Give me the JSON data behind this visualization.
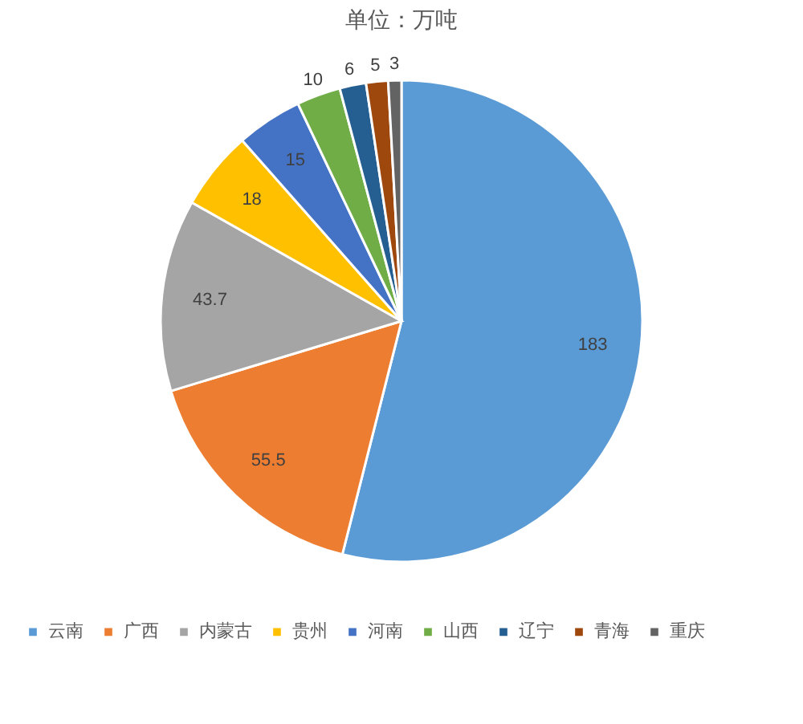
{
  "chart_data": {
    "type": "pie",
    "title": "单位：万吨",
    "categories": [
      "云南",
      "广西",
      "内蒙古",
      "贵州",
      "河南",
      "山西",
      "辽宁",
      "青海",
      "重庆"
    ],
    "values": [
      183,
      55.5,
      43.7,
      18,
      15,
      10,
      6,
      5,
      3
    ],
    "colors": [
      "#5b9bd5",
      "#ed7d31",
      "#a5a5a5",
      "#ffc000",
      "#4472c4",
      "#70ad47",
      "#255e91",
      "#9e480e",
      "#636363"
    ],
    "data_labels": true,
    "legend": "bottom"
  }
}
